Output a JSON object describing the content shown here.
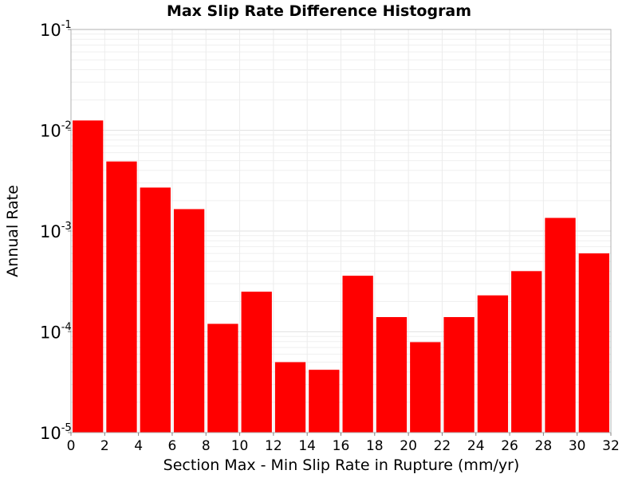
{
  "chart_data": {
    "type": "bar",
    "title": "Max Slip Rate Difference Histogram",
    "xlabel": "Section Max - Min Slip Rate in Rupture (mm/yr)",
    "ylabel": "Annual Rate",
    "xlim": [
      0,
      32
    ],
    "ylim": [
      1e-05,
      0.1
    ],
    "yscale": "log",
    "grid": true,
    "legend": "none",
    "bar_color": "#ff0000",
    "x_ticks": [
      "0",
      "2",
      "4",
      "6",
      "8",
      "10",
      "12",
      "14",
      "16",
      "18",
      "20",
      "22",
      "24",
      "26",
      "28",
      "30",
      "32"
    ],
    "y_ticks": [
      {
        "base": "10",
        "exp": "-5"
      },
      {
        "base": "10",
        "exp": "-4"
      },
      {
        "base": "10",
        "exp": "-3"
      },
      {
        "base": "10",
        "exp": "-2"
      },
      {
        "base": "10",
        "exp": "-1"
      }
    ],
    "bins": [
      {
        "x0": 0,
        "x1": 2,
        "value": 0.0125
      },
      {
        "x0": 2,
        "x1": 4,
        "value": 0.0049
      },
      {
        "x0": 4,
        "x1": 6,
        "value": 0.0027
      },
      {
        "x0": 6,
        "x1": 8,
        "value": 0.00165
      },
      {
        "x0": 8,
        "x1": 10,
        "value": 0.00012
      },
      {
        "x0": 10,
        "x1": 12,
        "value": 0.00025
      },
      {
        "x0": 12,
        "x1": 14,
        "value": 5e-05
      },
      {
        "x0": 14,
        "x1": 16,
        "value": 4.2e-05
      },
      {
        "x0": 16,
        "x1": 18,
        "value": 0.00036
      },
      {
        "x0": 18,
        "x1": 20,
        "value": 0.00014
      },
      {
        "x0": 20,
        "x1": 22,
        "value": 7.9e-05
      },
      {
        "x0": 22,
        "x1": 24,
        "value": 0.00014
      },
      {
        "x0": 24,
        "x1": 26,
        "value": 0.00023
      },
      {
        "x0": 26,
        "x1": 28,
        "value": 0.0004
      },
      {
        "x0": 28,
        "x1": 30,
        "value": 0.00135
      },
      {
        "x0": 30,
        "x1": 32,
        "value": 0.0006
      }
    ]
  }
}
